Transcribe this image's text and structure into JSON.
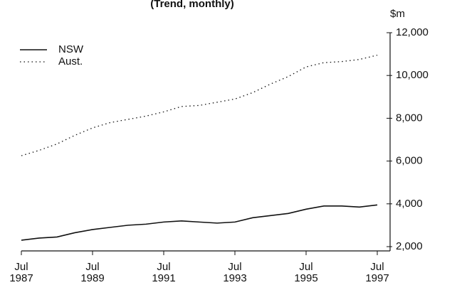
{
  "chart_data": {
    "type": "line",
    "title": "(Trend, monthly)",
    "y_unit": "$m",
    "x": [
      1987.5,
      1988,
      1988.5,
      1989,
      1989.5,
      1990,
      1990.5,
      1991,
      1991.5,
      1992,
      1992.5,
      1993,
      1993.5,
      1994,
      1994.5,
      1995,
      1995.5,
      1996,
      1996.5,
      1997,
      1997.5
    ],
    "series": [
      {
        "name": "NSW",
        "color": "#111111",
        "style": "solid",
        "values": [
          2300,
          2400,
          2450,
          2650,
          2800,
          2900,
          3000,
          3050,
          3150,
          3200,
          3150,
          3100,
          3150,
          3350,
          3450,
          3550,
          3750,
          3900,
          3900,
          3850,
          3950
        ]
      },
      {
        "name": "Aust.",
        "color": "#111111",
        "style": "dotted",
        "values": [
          6250,
          6500,
          6800,
          7200,
          7550,
          7800,
          7950,
          8100,
          8300,
          8550,
          8600,
          8750,
          8900,
          9200,
          9600,
          9950,
          10400,
          10600,
          10650,
          10750,
          10950
        ]
      }
    ],
    "xlim": [
      1987.5,
      1997.5
    ],
    "xticks": [
      {
        "value": 1987.5,
        "label": "Jul\n1987"
      },
      {
        "value": 1989.5,
        "label": "Jul\n1989"
      },
      {
        "value": 1991.5,
        "label": "Jul\n1991"
      },
      {
        "value": 1993.5,
        "label": "Jul\n1993"
      },
      {
        "value": 1995.5,
        "label": "Jul\n1995"
      },
      {
        "value": 1997.5,
        "label": "Jul\n1997"
      }
    ],
    "ylim": [
      1800,
      12000
    ],
    "yticks": [
      {
        "value": 2000,
        "label": "2,000"
      },
      {
        "value": 4000,
        "label": "4,000"
      },
      {
        "value": 6000,
        "label": "6,000"
      },
      {
        "value": 8000,
        "label": "8,000"
      },
      {
        "value": 10000,
        "label": "10,000"
      },
      {
        "value": 12000,
        "label": "12,000"
      }
    ],
    "legend": "top-left"
  }
}
